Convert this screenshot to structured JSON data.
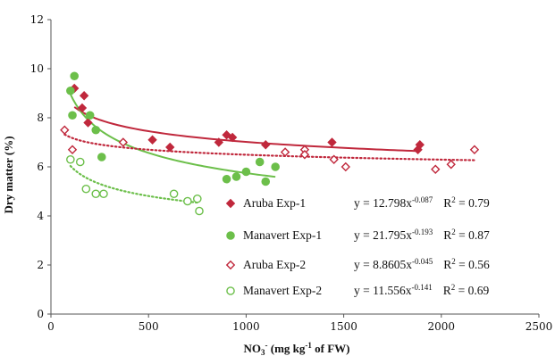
{
  "chart_data": {
    "type": "scatter",
    "title": "",
    "xlabel": "NO3- (mg kg-1 of FW)",
    "xlabel_parts": {
      "base": "NO",
      "sub": "3",
      "sup": "-",
      "rest": " (mg kg",
      "sup2": "-1",
      "rest2": " of FW)"
    },
    "ylabel": "Dry matter (%)",
    "xlim": [
      0,
      2500
    ],
    "ylim": [
      0,
      12
    ],
    "xticks": [
      "0",
      "500",
      "1000",
      "1500",
      "2000",
      "2500"
    ],
    "yticks": [
      "0",
      "2",
      "4",
      "6",
      "8",
      "10",
      "12"
    ],
    "xtick_values": [
      0,
      500,
      1000,
      1500,
      2000,
      2500
    ],
    "ytick_values": [
      0,
      2,
      4,
      6,
      8,
      10,
      12
    ],
    "grid": false,
    "legend_position": "bottom-right",
    "series": [
      {
        "name": "Aruba Exp-1",
        "marker": "diamond-filled",
        "color": "#c0283c",
        "line_style": "solid",
        "points": [
          [
            120,
            9.2
          ],
          [
            160,
            8.4
          ],
          [
            170,
            8.9
          ],
          [
            190,
            7.8
          ],
          [
            520,
            7.1
          ],
          [
            610,
            6.8
          ],
          [
            860,
            7.0
          ],
          [
            900,
            7.3
          ],
          [
            930,
            7.2
          ],
          [
            1100,
            6.9
          ],
          [
            1440,
            7.0
          ],
          [
            1880,
            6.7
          ],
          [
            1890,
            6.9
          ]
        ],
        "fit": {
          "a": 12.798,
          "b": -0.087,
          "x_range": [
            120,
            1890
          ]
        },
        "equation": {
          "lhs": "y = 12.798x",
          "exp": "-0.087",
          "r2_label": "R",
          "r2_exp": "2",
          "r2_value": " = 0.79"
        }
      },
      {
        "name": "Manavert Exp-1",
        "marker": "circle-filled",
        "color": "#6cbf4a",
        "line_style": "solid",
        "points": [
          [
            100,
            9.1
          ],
          [
            120,
            9.7
          ],
          [
            110,
            8.1
          ],
          [
            200,
            8.1
          ],
          [
            230,
            7.5
          ],
          [
            260,
            6.4
          ],
          [
            900,
            5.5
          ],
          [
            950,
            5.6
          ],
          [
            1000,
            5.8
          ],
          [
            1070,
            6.2
          ],
          [
            1100,
            5.4
          ],
          [
            1150,
            6.0
          ]
        ],
        "fit": {
          "a": 21.795,
          "b": -0.193,
          "x_range": [
            100,
            1150
          ]
        },
        "equation": {
          "lhs": "y = 21.795x",
          "exp": "-0.193",
          "r2_label": "R",
          "r2_exp": "2",
          "r2_value": " = 0.87"
        }
      },
      {
        "name": "Aruba Exp-2",
        "marker": "diamond-open",
        "color": "#c0283c",
        "line_style": "dotted",
        "points": [
          [
            70,
            7.5
          ],
          [
            110,
            6.7
          ],
          [
            370,
            7.0
          ],
          [
            1200,
            6.6
          ],
          [
            1300,
            6.7
          ],
          [
            1300,
            6.5
          ],
          [
            1450,
            6.3
          ],
          [
            1510,
            6.0
          ],
          [
            1970,
            5.9
          ],
          [
            2050,
            6.1
          ],
          [
            2170,
            6.7
          ]
        ],
        "fit": {
          "a": 8.8605,
          "b": -0.045,
          "x_range": [
            70,
            2170
          ]
        },
        "equation": {
          "lhs": "y = 8.8605x",
          "exp": "-0.045",
          "r2_label": "R",
          "r2_exp": "2",
          "r2_value": " = 0.56"
        }
      },
      {
        "name": "Manavert Exp-2",
        "marker": "circle-open",
        "color": "#6cbf4a",
        "line_style": "dotted",
        "points": [
          [
            100,
            6.3
          ],
          [
            150,
            6.2
          ],
          [
            180,
            5.1
          ],
          [
            230,
            4.9
          ],
          [
            270,
            4.9
          ],
          [
            630,
            4.9
          ],
          [
            700,
            4.6
          ],
          [
            750,
            4.7
          ],
          [
            760,
            4.2
          ]
        ],
        "fit": {
          "a": 11.556,
          "b": -0.141,
          "x_range": [
            100,
            760
          ]
        },
        "equation": {
          "lhs": "y = 11.556x",
          "exp": "-0.141",
          "r2_label": "R",
          "r2_exp": "2",
          "r2_value": " = 0.69"
        }
      }
    ]
  }
}
